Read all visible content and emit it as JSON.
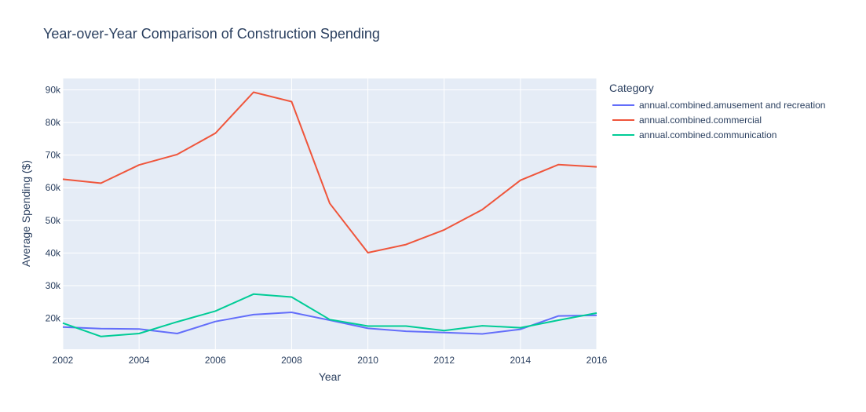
{
  "chart_data": {
    "type": "line",
    "title": "Year-over-Year Comparison of Construction Spending",
    "xlabel": "Year",
    "ylabel": "Average Spending ($)",
    "xlim": [
      2002,
      2016
    ],
    "ylim": [
      10500,
      93500
    ],
    "x_ticks": [
      2002,
      2004,
      2006,
      2008,
      2010,
      2012,
      2014,
      2016
    ],
    "y_ticks": [
      20000,
      30000,
      40000,
      50000,
      60000,
      70000,
      80000,
      90000
    ],
    "y_tick_labels": [
      "20k",
      "30k",
      "40k",
      "50k",
      "60k",
      "70k",
      "80k",
      "90k"
    ],
    "x": [
      2002,
      2003,
      2004,
      2005,
      2006,
      2007,
      2008,
      2009,
      2010,
      2011,
      2012,
      2013,
      2014,
      2015,
      2016
    ],
    "legend_title": "Category",
    "legend_position": "right",
    "grid": true,
    "series": [
      {
        "name": "annual.combined.amusement and recreation",
        "color": "#636efa",
        "values": [
          17300,
          16800,
          16700,
          15300,
          19000,
          21100,
          21800,
          19400,
          16900,
          16000,
          15600,
          15200,
          16600,
          20700,
          20900
        ]
      },
      {
        "name": "annual.combined.commercial",
        "color": "#ef553b",
        "values": [
          62600,
          61400,
          67000,
          70200,
          76700,
          89300,
          86400,
          55200,
          40100,
          42600,
          47100,
          53300,
          62300,
          67100,
          66400
        ]
      },
      {
        "name": "annual.combined.communication",
        "color": "#00cc96",
        "values": [
          18500,
          14400,
          15300,
          18900,
          22200,
          27400,
          26500,
          19600,
          17600,
          17600,
          16200,
          17700,
          17100,
          19400,
          21600
        ]
      }
    ]
  }
}
